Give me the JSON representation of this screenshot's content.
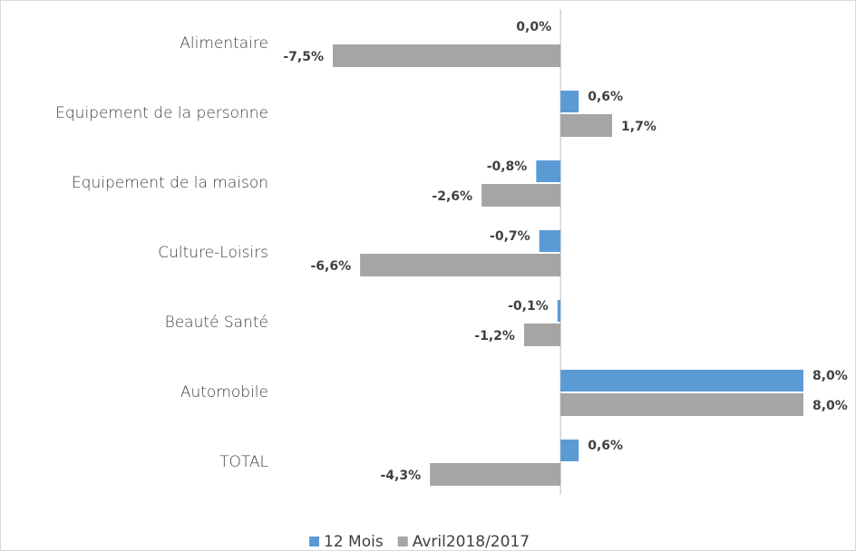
{
  "chart_data": {
    "type": "bar",
    "orientation": "horizontal",
    "categories": [
      "Alimentaire",
      "Equipement de la personne",
      "Equipement de la maison",
      "Culture-Loisirs",
      "Beauté Santé",
      "Automobile",
      "TOTAL"
    ],
    "series": [
      {
        "name": "12 Mois",
        "color": "#5b9bd5",
        "values": [
          0.0,
          0.6,
          -0.8,
          -0.7,
          -0.1,
          8.0,
          0.6
        ],
        "value_labels": [
          "0,0%",
          "0,6%",
          "-0,8%",
          "-0,7%",
          "-0,1%",
          "8,0%",
          "0,6%"
        ]
      },
      {
        "name": "Avril2018/2017",
        "color": "#a5a5a5",
        "values": [
          -7.5,
          1.7,
          -2.6,
          -6.6,
          -1.2,
          8.0,
          -4.3
        ],
        "value_labels": [
          "-7,5%",
          "1,7%",
          "-2,6%",
          "-6,6%",
          "-1,2%",
          "8,0%",
          "-4,3%"
        ]
      }
    ],
    "legend": "bottom"
  }
}
